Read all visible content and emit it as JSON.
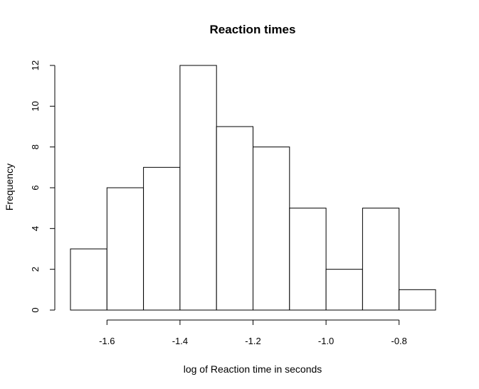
{
  "chart_data": {
    "type": "bar",
    "title": "Reaction times",
    "xlabel": "log of Reaction time in seconds",
    "ylabel": "Frequency",
    "bin_edges": [
      -1.7,
      -1.6,
      -1.5,
      -1.4,
      -1.3,
      -1.2,
      -1.1,
      -1.0,
      -0.9,
      -0.8,
      -0.7
    ],
    "values": [
      3,
      6,
      7,
      12,
      9,
      8,
      5,
      2,
      5,
      1
    ],
    "xlim": [
      -1.7,
      -0.7
    ],
    "ylim": [
      0,
      12
    ],
    "x_ticks": [
      -1.6,
      -1.4,
      -1.2,
      -1.0,
      -0.8
    ],
    "x_tick_labels": [
      "-1.6",
      "-1.4",
      "-1.2",
      "-1.0",
      "-0.8"
    ],
    "y_ticks": [
      0,
      2,
      4,
      6,
      8,
      10,
      12
    ],
    "y_tick_labels": [
      "0",
      "2",
      "4",
      "6",
      "8",
      "10",
      "12"
    ],
    "grid": false,
    "bar_fill": "#ffffff",
    "bar_stroke": "#000000"
  }
}
